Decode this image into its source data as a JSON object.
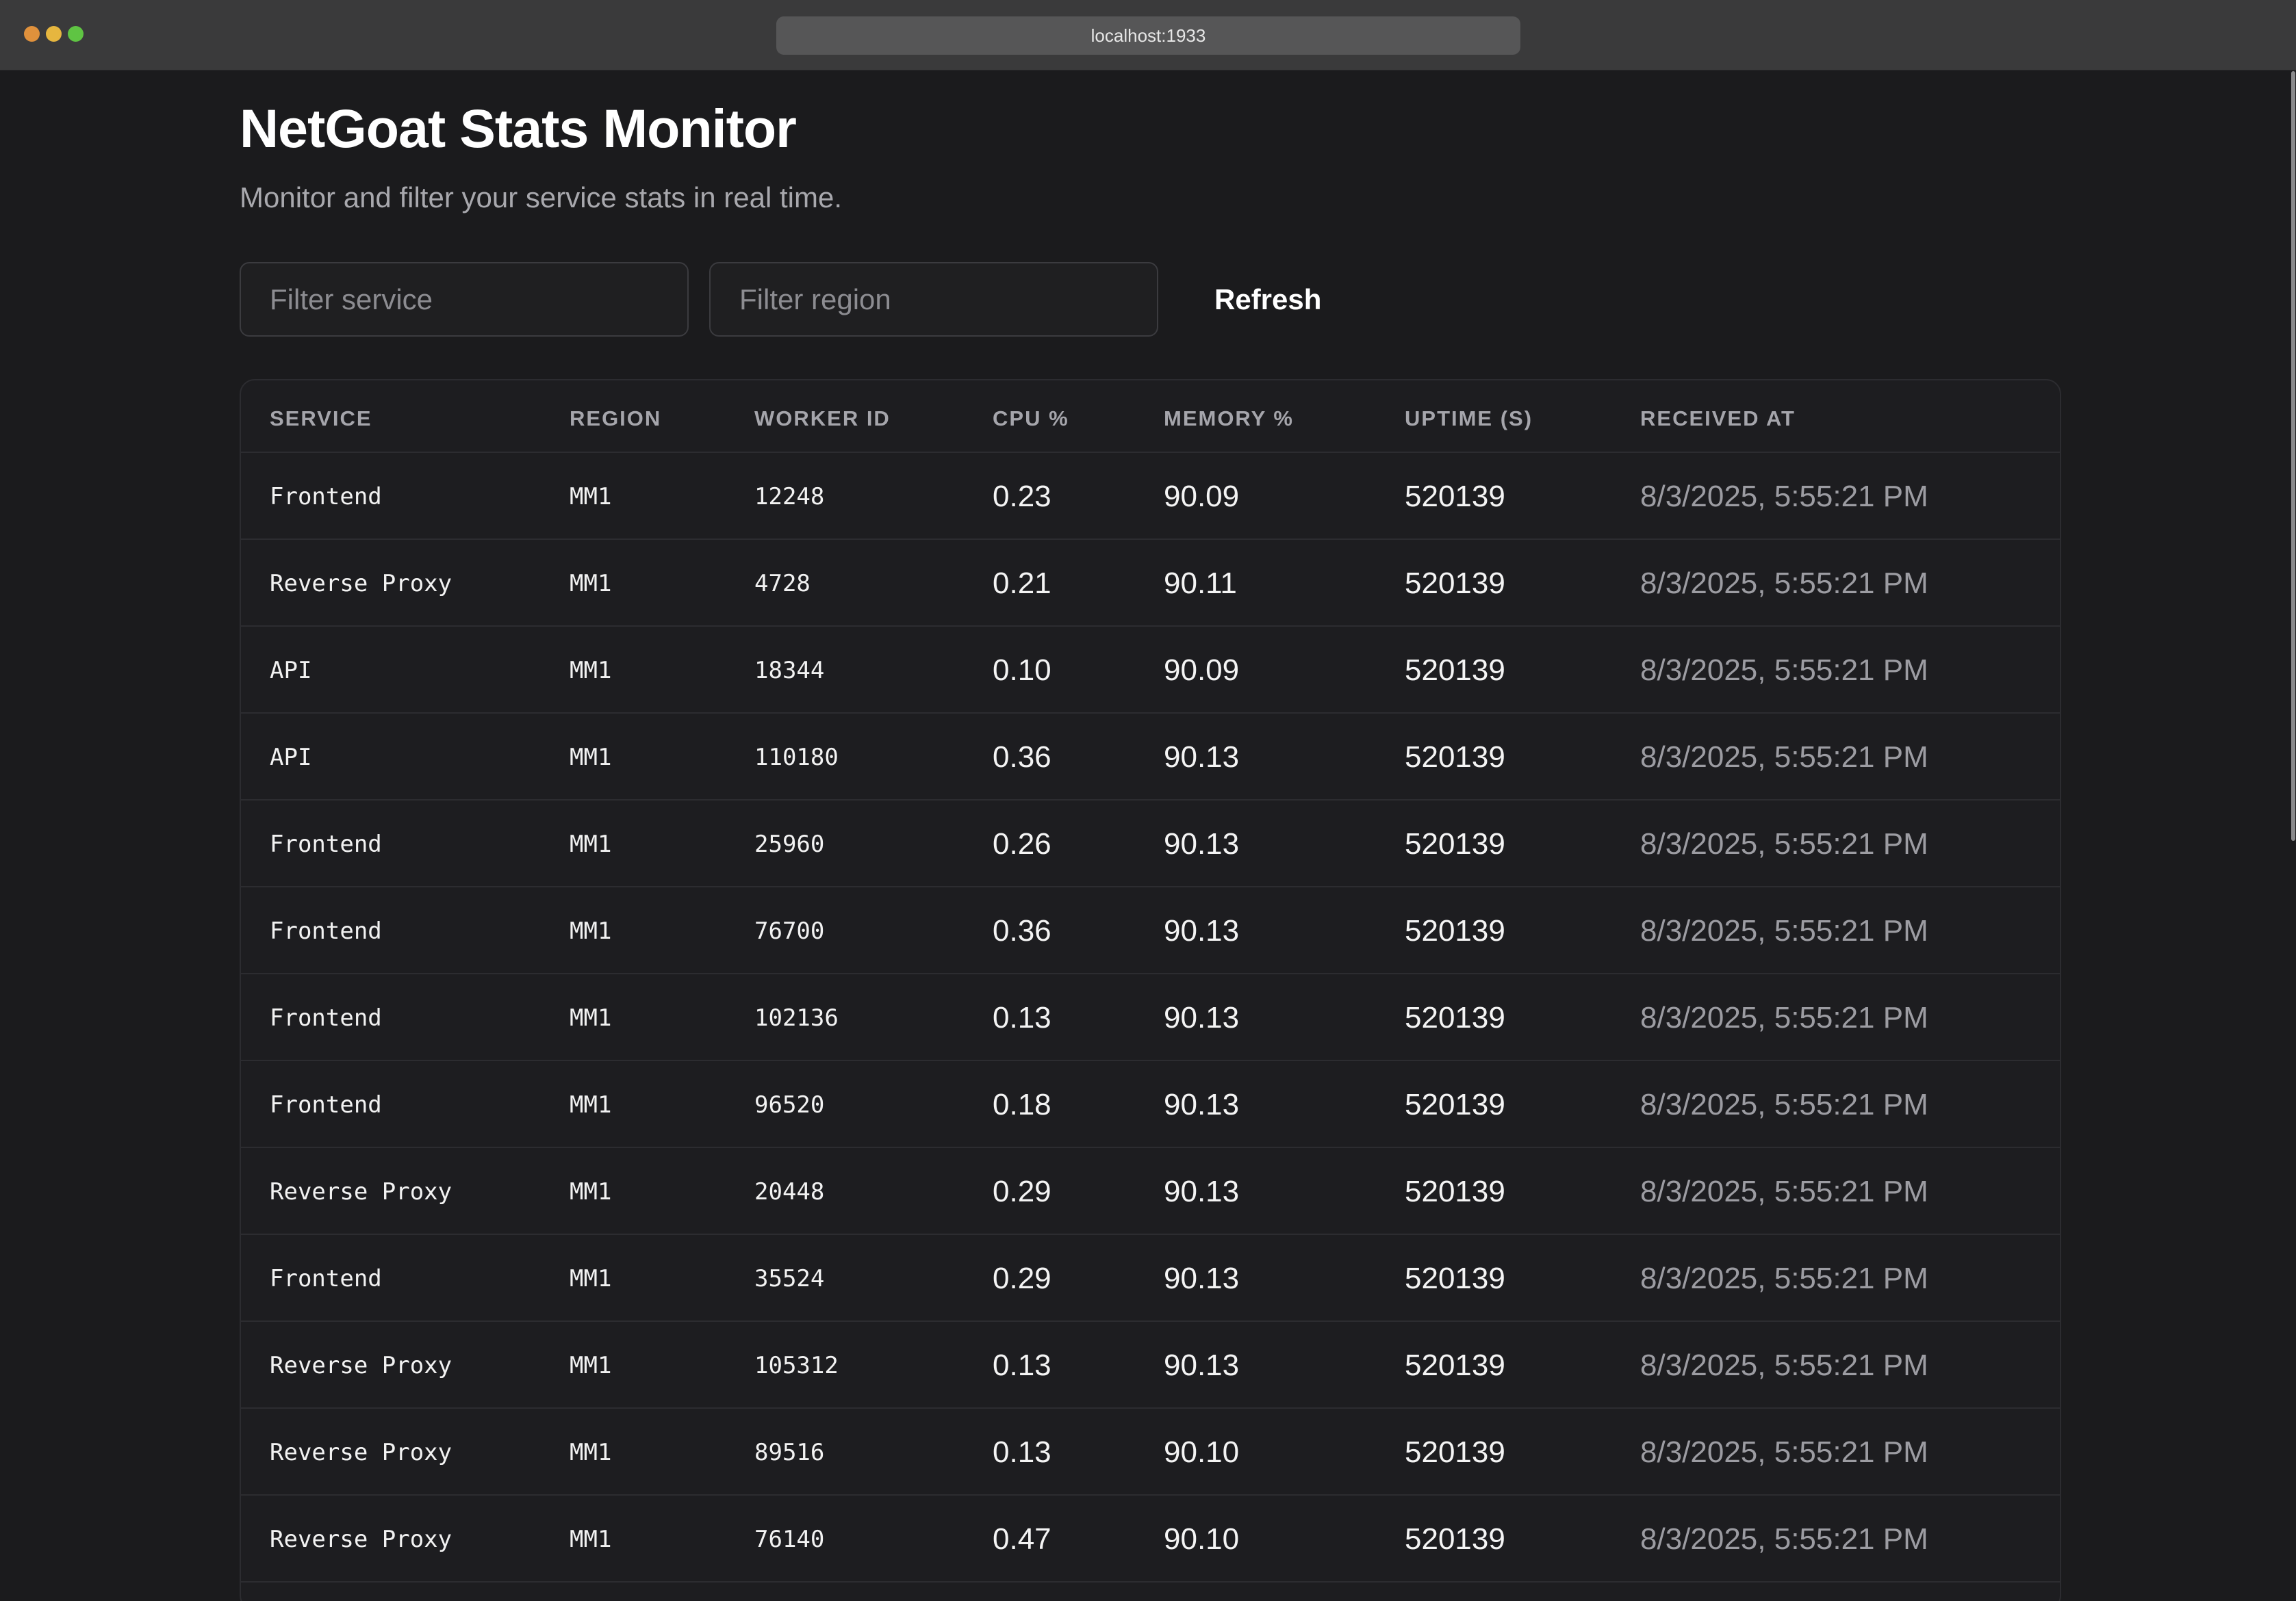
{
  "browser": {
    "url": "localhost:1933"
  },
  "header": {
    "title": "NetGoat Stats Monitor",
    "subtitle": "Monitor and filter your service stats in real time."
  },
  "filters": {
    "service_placeholder": "Filter service",
    "service_value": "",
    "region_placeholder": "Filter region",
    "region_value": "",
    "refresh_label": "Refresh"
  },
  "table": {
    "columns": [
      "SERVICE",
      "REGION",
      "WORKER ID",
      "CPU %",
      "MEMORY %",
      "UPTIME (S)",
      "RECEIVED AT"
    ],
    "rows": [
      {
        "service": "Frontend",
        "region": "MM1",
        "worker_id": "12248",
        "cpu": "0.23",
        "memory": "90.09",
        "uptime": "520139",
        "received_at": "8/3/2025, 5:55:21 PM"
      },
      {
        "service": "Reverse Proxy",
        "region": "MM1",
        "worker_id": "4728",
        "cpu": "0.21",
        "memory": "90.11",
        "uptime": "520139",
        "received_at": "8/3/2025, 5:55:21 PM"
      },
      {
        "service": "API",
        "region": "MM1",
        "worker_id": "18344",
        "cpu": "0.10",
        "memory": "90.09",
        "uptime": "520139",
        "received_at": "8/3/2025, 5:55:21 PM"
      },
      {
        "service": "API",
        "region": "MM1",
        "worker_id": "110180",
        "cpu": "0.36",
        "memory": "90.13",
        "uptime": "520139",
        "received_at": "8/3/2025, 5:55:21 PM"
      },
      {
        "service": "Frontend",
        "region": "MM1",
        "worker_id": "25960",
        "cpu": "0.26",
        "memory": "90.13",
        "uptime": "520139",
        "received_at": "8/3/2025, 5:55:21 PM"
      },
      {
        "service": "Frontend",
        "region": "MM1",
        "worker_id": "76700",
        "cpu": "0.36",
        "memory": "90.13",
        "uptime": "520139",
        "received_at": "8/3/2025, 5:55:21 PM"
      },
      {
        "service": "Frontend",
        "region": "MM1",
        "worker_id": "102136",
        "cpu": "0.13",
        "memory": "90.13",
        "uptime": "520139",
        "received_at": "8/3/2025, 5:55:21 PM"
      },
      {
        "service": "Frontend",
        "region": "MM1",
        "worker_id": "96520",
        "cpu": "0.18",
        "memory": "90.13",
        "uptime": "520139",
        "received_at": "8/3/2025, 5:55:21 PM"
      },
      {
        "service": "Reverse Proxy",
        "region": "MM1",
        "worker_id": "20448",
        "cpu": "0.29",
        "memory": "90.13",
        "uptime": "520139",
        "received_at": "8/3/2025, 5:55:21 PM"
      },
      {
        "service": "Frontend",
        "region": "MM1",
        "worker_id": "35524",
        "cpu": "0.29",
        "memory": "90.13",
        "uptime": "520139",
        "received_at": "8/3/2025, 5:55:21 PM"
      },
      {
        "service": "Reverse Proxy",
        "region": "MM1",
        "worker_id": "105312",
        "cpu": "0.13",
        "memory": "90.13",
        "uptime": "520139",
        "received_at": "8/3/2025, 5:55:21 PM"
      },
      {
        "service": "Reverse Proxy",
        "region": "MM1",
        "worker_id": "89516",
        "cpu": "0.13",
        "memory": "90.10",
        "uptime": "520139",
        "received_at": "8/3/2025, 5:55:21 PM"
      },
      {
        "service": "Reverse Proxy",
        "region": "MM1",
        "worker_id": "76140",
        "cpu": "0.47",
        "memory": "90.10",
        "uptime": "520139",
        "received_at": "8/3/2025, 5:55:21 PM"
      }
    ]
  }
}
